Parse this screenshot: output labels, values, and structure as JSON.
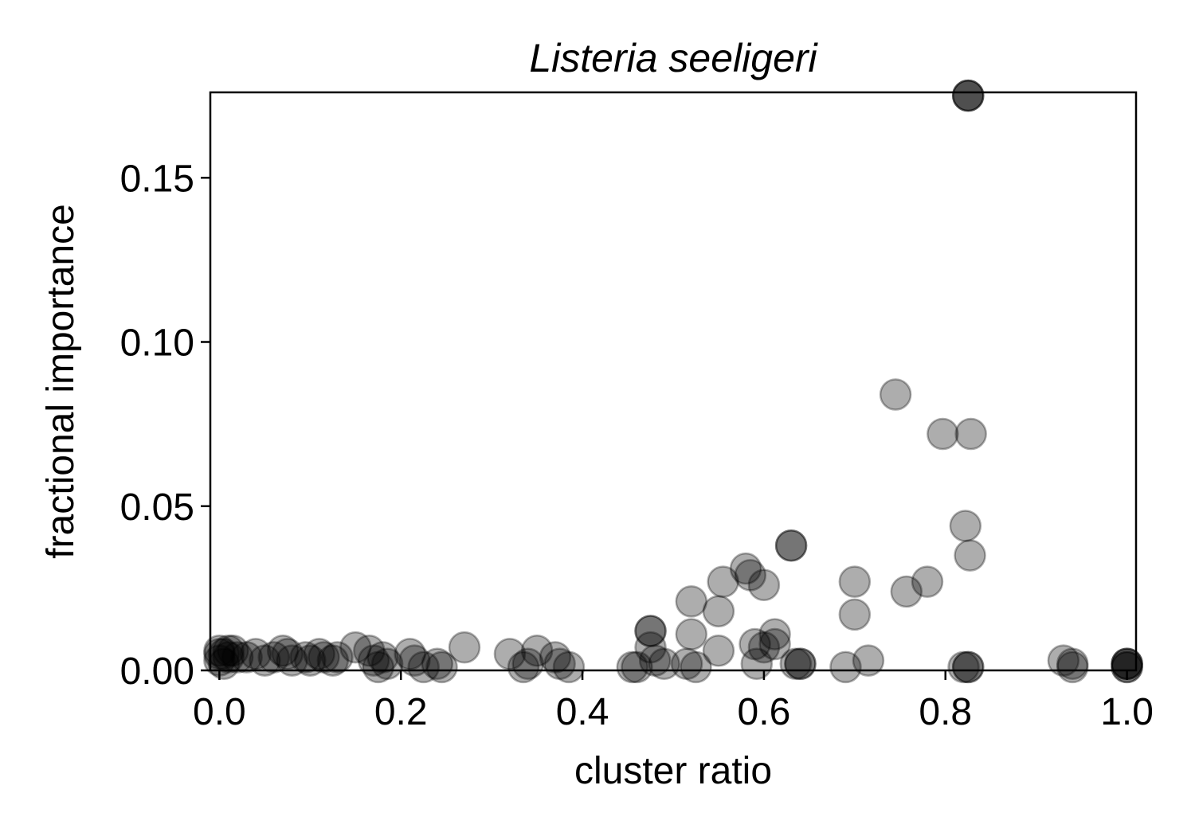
{
  "chart_data": {
    "type": "scatter",
    "title": "Listeria seeligeri",
    "xlabel": "cluster ratio",
    "ylabel": "fractional importance",
    "xlim": [
      -0.01,
      1.01
    ],
    "ylim": [
      0.0,
      0.176
    ],
    "xticks": [
      0.0,
      0.2,
      0.4,
      0.6,
      0.8,
      1.0
    ],
    "xtick_labels": [
      "0.0",
      "0.2",
      "0.4",
      "0.6",
      "0.8",
      "1.0"
    ],
    "yticks": [
      0.0,
      0.05,
      0.1,
      0.15
    ],
    "ytick_labels": [
      "0.00",
      "0.05",
      "0.10",
      "0.15"
    ],
    "grid": false,
    "marker_color": "#000000",
    "marker_alpha": 0.32,
    "points": [
      {
        "x": 0.825,
        "y": 0.175
      },
      {
        "x": 0.825,
        "y": 0.175
      },
      {
        "x": 0.825,
        "y": 0.175
      },
      {
        "x": 0.745,
        "y": 0.084
      },
      {
        "x": 0.797,
        "y": 0.072
      },
      {
        "x": 0.828,
        "y": 0.072
      },
      {
        "x": 0.822,
        "y": 0.044
      },
      {
        "x": 0.827,
        "y": 0.035
      },
      {
        "x": 0.63,
        "y": 0.038
      },
      {
        "x": 0.63,
        "y": 0.038
      },
      {
        "x": 0.58,
        "y": 0.031
      },
      {
        "x": 0.585,
        "y": 0.029
      },
      {
        "x": 0.6,
        "y": 0.026
      },
      {
        "x": 0.555,
        "y": 0.027
      },
      {
        "x": 0.52,
        "y": 0.021
      },
      {
        "x": 0.55,
        "y": 0.018
      },
      {
        "x": 0.52,
        "y": 0.011
      },
      {
        "x": 0.55,
        "y": 0.006
      },
      {
        "x": 0.7,
        "y": 0.027
      },
      {
        "x": 0.7,
        "y": 0.017
      },
      {
        "x": 0.757,
        "y": 0.024
      },
      {
        "x": 0.78,
        "y": 0.027
      },
      {
        "x": 0.475,
        "y": 0.012
      },
      {
        "x": 0.475,
        "y": 0.012
      },
      {
        "x": 0.475,
        "y": 0.007
      },
      {
        "x": 0.48,
        "y": 0.003
      },
      {
        "x": 0.612,
        "y": 0.011
      },
      {
        "x": 0.59,
        "y": 0.008
      },
      {
        "x": 0.6,
        "y": 0.007
      },
      {
        "x": 0.612,
        "y": 0.008
      },
      {
        "x": 0.592,
        "y": 0.002
      },
      {
        "x": 0.64,
        "y": 0.002
      },
      {
        "x": 0.64,
        "y": 0.002
      },
      {
        "x": 0.635,
        "y": 0.002
      },
      {
        "x": 0.69,
        "y": 0.001
      },
      {
        "x": 0.715,
        "y": 0.003
      },
      {
        "x": 0.825,
        "y": 0.001
      },
      {
        "x": 0.825,
        "y": 0.001
      },
      {
        "x": 0.82,
        "y": 0.001
      },
      {
        "x": 0.93,
        "y": 0.003
      },
      {
        "x": 0.94,
        "y": 0.002
      },
      {
        "x": 0.94,
        "y": 0.001
      },
      {
        "x": 1.0,
        "y": 0.002
      },
      {
        "x": 1.0,
        "y": 0.002
      },
      {
        "x": 1.0,
        "y": 0.001
      },
      {
        "x": 1.0,
        "y": 0.001
      },
      {
        "x": 1.0,
        "y": 0.002
      },
      {
        "x": 0.455,
        "y": 0.001
      },
      {
        "x": 0.46,
        "y": 0.001
      },
      {
        "x": 0.49,
        "y": 0.002
      },
      {
        "x": 0.515,
        "y": 0.002
      },
      {
        "x": 0.525,
        "y": 0.001
      },
      {
        "x": 0.27,
        "y": 0.007
      },
      {
        "x": 0.32,
        "y": 0.005
      },
      {
        "x": 0.35,
        "y": 0.006
      },
      {
        "x": 0.37,
        "y": 0.004
      },
      {
        "x": 0.375,
        "y": 0.002
      },
      {
        "x": 0.385,
        "y": 0.001
      },
      {
        "x": 0.34,
        "y": 0.002
      },
      {
        "x": 0.335,
        "y": 0.001
      },
      {
        "x": 0.0,
        "y": 0.006
      },
      {
        "x": 0.005,
        "y": 0.005
      },
      {
        "x": 0.01,
        "y": 0.004
      },
      {
        "x": 0.0,
        "y": 0.003
      },
      {
        "x": 0.015,
        "y": 0.006
      },
      {
        "x": 0.02,
        "y": 0.004
      },
      {
        "x": 0.005,
        "y": 0.002
      },
      {
        "x": 0.0,
        "y": 0.005
      },
      {
        "x": 0.01,
        "y": 0.006
      },
      {
        "x": 0.03,
        "y": 0.004
      },
      {
        "x": 0.04,
        "y": 0.005
      },
      {
        "x": 0.05,
        "y": 0.003
      },
      {
        "x": 0.06,
        "y": 0.004
      },
      {
        "x": 0.07,
        "y": 0.006
      },
      {
        "x": 0.075,
        "y": 0.005
      },
      {
        "x": 0.08,
        "y": 0.003
      },
      {
        "x": 0.095,
        "y": 0.004
      },
      {
        "x": 0.1,
        "y": 0.003
      },
      {
        "x": 0.11,
        "y": 0.005
      },
      {
        "x": 0.115,
        "y": 0.004
      },
      {
        "x": 0.125,
        "y": 0.003
      },
      {
        "x": 0.13,
        "y": 0.004
      },
      {
        "x": 0.15,
        "y": 0.007
      },
      {
        "x": 0.165,
        "y": 0.006
      },
      {
        "x": 0.17,
        "y": 0.003
      },
      {
        "x": 0.175,
        "y": 0.001
      },
      {
        "x": 0.185,
        "y": 0.002
      },
      {
        "x": 0.18,
        "y": 0.004
      },
      {
        "x": 0.21,
        "y": 0.005
      },
      {
        "x": 0.215,
        "y": 0.003
      },
      {
        "x": 0.225,
        "y": 0.001
      },
      {
        "x": 0.24,
        "y": 0.002
      },
      {
        "x": 0.245,
        "y": 0.001
      }
    ]
  }
}
